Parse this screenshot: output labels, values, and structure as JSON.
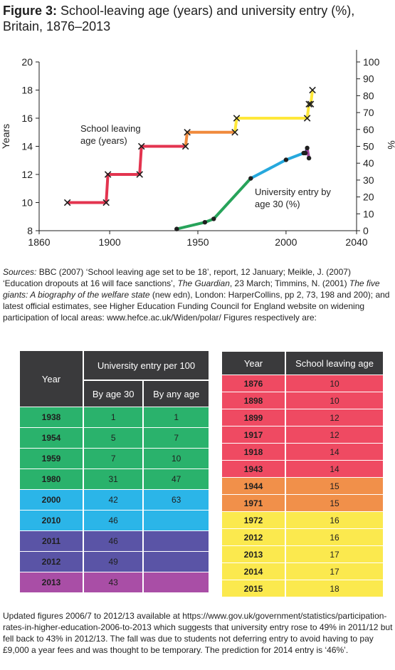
{
  "title": {
    "figure_label": "Figure 3:",
    "text": "School-leaving age (years) and university entry (%), Britain, 1876–2013"
  },
  "sources": {
    "label": "Sources:",
    "text1": "BBC (2007) ‘School leaving age set to be 18’, report, 12 January; Meikle, J. (2007) ‘Education dropouts at 16 will face sanctions’, ",
    "pub1": "The Guardian",
    "text2": ", 23 March; Timmins, N. (2001) ",
    "book": "The five giants: A biography of the welfare state",
    "text3": " (new edn), London: HarperCollins, pp 2, 73, 198 and 200); and latest official estimates, see Higher Education Funding Council for England website on widening participation of local areas: www.hefce.ac.uk/Widen/polar/ Figures respectively are:"
  },
  "university_table": {
    "group_header": "University entry per 100",
    "col_year": "Year",
    "col_30": "By age 30",
    "col_any": "By any age",
    "rows": [
      {
        "year": "1938",
        "age30": "1",
        "any": "1",
        "color": "#2ab26c"
      },
      {
        "year": "1954",
        "age30": "5",
        "any": "7",
        "color": "#2ab26c"
      },
      {
        "year": "1959",
        "age30": "7",
        "any": "10",
        "color": "#2ab26c"
      },
      {
        "year": "1980",
        "age30": "31",
        "any": "47",
        "color": "#2ab26c"
      },
      {
        "year": "2000",
        "age30": "42",
        "any": "63",
        "color": "#2bb5e8"
      },
      {
        "year": "2010",
        "age30": "46",
        "any": "",
        "color": "#2bb5e8"
      },
      {
        "year": "2011",
        "age30": "46",
        "any": "",
        "color": "#5a54a6"
      },
      {
        "year": "2012",
        "age30": "49",
        "any": "",
        "color": "#5a54a6"
      },
      {
        "year": "2013",
        "age30": "43",
        "any": "",
        "color": "#a94ea6"
      }
    ]
  },
  "school_table": {
    "col_year": "Year",
    "col_age": "School leaving age",
    "rows": [
      {
        "year": "1876",
        "age": "10",
        "color": "#ef4a62"
      },
      {
        "year": "1898",
        "age": "10",
        "color": "#ef4a62"
      },
      {
        "year": "1899",
        "age": "12",
        "color": "#ef4a62"
      },
      {
        "year": "1917",
        "age": "12",
        "color": "#ef4a62"
      },
      {
        "year": "1918",
        "age": "14",
        "color": "#ef4a62"
      },
      {
        "year": "1943",
        "age": "14",
        "color": "#ef4a62"
      },
      {
        "year": "1944",
        "age": "15",
        "color": "#f1904a"
      },
      {
        "year": "1971",
        "age": "15",
        "color": "#f1904a"
      },
      {
        "year": "1972",
        "age": "16",
        "color": "#fbe94e"
      },
      {
        "year": "2012",
        "age": "16",
        "color": "#fbe94e"
      },
      {
        "year": "2013",
        "age": "17",
        "color": "#fbe94e"
      },
      {
        "year": "2014",
        "age": "17",
        "color": "#fbe94e"
      },
      {
        "year": "2015",
        "age": "18",
        "color": "#fbe94e"
      }
    ]
  },
  "footnote": "Updated figures 2006/7 to 2012/13 available at https://www.gov.uk/government/statistics/participation-rates-in-higher-education-2006-to-2013 which suggests that university entry rose to 49% in 2011/12 but fell back to 43% in 2012/13. The fall was due to students not deferring entry to avoid having to pay £9,000 a year fees and was thought to be temporary. The prediction for 2014 entry is ‘46%’.",
  "chart_data": {
    "type": "line",
    "xlim": [
      1860,
      2040
    ],
    "x_ticks": [
      1860,
      1900,
      1950,
      2000,
      2040
    ],
    "left_axis": {
      "label": "Years",
      "ylim": [
        8,
        20
      ],
      "ticks": [
        8,
        10,
        12,
        14,
        16,
        18,
        20
      ]
    },
    "right_axis": {
      "label": "%",
      "ylim": [
        0,
        100
      ],
      "ticks": [
        0,
        10,
        20,
        30,
        40,
        50,
        60,
        70,
        80,
        90,
        100
      ]
    },
    "annotations": [
      {
        "text": "School leaving",
        "text2": "age (years)"
      },
      {
        "text": "University entry by",
        "text2": "age 30 (%)"
      }
    ],
    "school_series": {
      "axis": "left",
      "segments": [
        {
          "color": "#e3344f",
          "points": [
            [
              1876,
              10
            ],
            [
              1898,
              10
            ],
            [
              1899,
              12
            ],
            [
              1917,
              12
            ],
            [
              1918,
              14
            ],
            [
              1943,
              14
            ]
          ]
        },
        {
          "color": "#f08a3c",
          "points": [
            [
              1943,
              14
            ],
            [
              1944,
              15
            ],
            [
              1971,
              15
            ]
          ]
        },
        {
          "color": "#ffe83a",
          "points": [
            [
              1971,
              15
            ],
            [
              1972,
              16
            ],
            [
              2012,
              16
            ],
            [
              2013,
              17
            ],
            [
              2014,
              17
            ],
            [
              2015,
              18
            ]
          ]
        }
      ],
      "markers": [
        [
          1876,
          10
        ],
        [
          1898,
          10
        ],
        [
          1899,
          12
        ],
        [
          1917,
          12
        ],
        [
          1918,
          14
        ],
        [
          1943,
          14
        ],
        [
          1944,
          15
        ],
        [
          1971,
          15
        ],
        [
          1972,
          16
        ],
        [
          2012,
          16
        ],
        [
          2013,
          17
        ],
        [
          2014,
          17
        ],
        [
          2015,
          18
        ]
      ]
    },
    "university_series": {
      "axis": "right",
      "segments": [
        {
          "color": "#27a35a",
          "points": [
            [
              1938,
              1
            ],
            [
              1954,
              5
            ],
            [
              1959,
              7
            ],
            [
              1980,
              31
            ]
          ]
        },
        {
          "color": "#26a8dd",
          "points": [
            [
              1980,
              31
            ],
            [
              2000,
              42
            ],
            [
              2010,
              46
            ]
          ]
        },
        {
          "color": "#4f4aa0",
          "points": [
            [
              2010,
              46
            ],
            [
              2011,
              46
            ],
            [
              2012,
              49
            ]
          ]
        },
        {
          "color": "#a1459f",
          "points": [
            [
              2012,
              49
            ],
            [
              2013,
              43
            ]
          ]
        }
      ],
      "markers": [
        [
          1938,
          1
        ],
        [
          1954,
          5
        ],
        [
          1959,
          7
        ],
        [
          1980,
          31
        ],
        [
          2000,
          42
        ],
        [
          2010,
          46
        ],
        [
          2011,
          46
        ],
        [
          2012,
          49
        ],
        [
          2013,
          43
        ]
      ]
    }
  }
}
